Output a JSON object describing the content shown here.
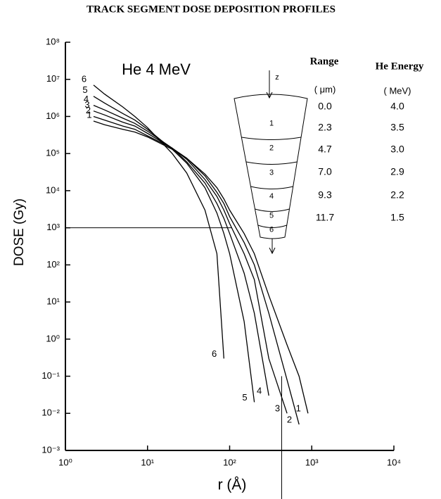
{
  "chart_data": {
    "type": "line",
    "title": "TRACK SEGMENT DOSE DEPOSITION PROFILES",
    "annotation": "He 4 MeV",
    "xlabel": "r (Å)",
    "ylabel": "DOSE (Gy)",
    "log_x": true,
    "log_y": true,
    "grid": false,
    "xlim": [
      1,
      10000
    ],
    "ylim": [
      0.001,
      100000000
    ],
    "xticks": [
      {
        "value": 1,
        "label": "10⁰"
      },
      {
        "value": 10,
        "label": "10¹"
      },
      {
        "value": 100,
        "label": "10²"
      },
      {
        "value": 1000,
        "label": "10³"
      },
      {
        "value": 10000,
        "label": "10⁴"
      }
    ],
    "yticks": [
      {
        "value": 0.001,
        "label": "10⁻³"
      },
      {
        "value": 0.01,
        "label": "10⁻²"
      },
      {
        "value": 0.1,
        "label": "10⁻¹"
      },
      {
        "value": 1,
        "label": "10⁰"
      },
      {
        "value": 10,
        "label": "10¹"
      },
      {
        "value": 100,
        "label": "10²"
      },
      {
        "value": 1000,
        "label": "10³"
      },
      {
        "value": 10000,
        "label": "10⁴"
      },
      {
        "value": 100000,
        "label": "10⁵"
      },
      {
        "value": 1000000,
        "label": "10⁶"
      },
      {
        "value": 10000000,
        "label": "10⁷"
      },
      {
        "value": 100000000,
        "label": "10⁸"
      }
    ],
    "x": [
      2.2,
      3,
      5,
      7,
      10,
      20,
      30,
      50,
      70,
      85,
      100,
      150,
      200,
      300,
      500,
      700,
      900
    ],
    "series": [
      {
        "name": "1",
        "color": "#000000",
        "values": [
          750000,
          600000,
          450000,
          380000,
          280000,
          130000,
          75000,
          28000,
          12000,
          6000,
          3000,
          700,
          200,
          15,
          0.7,
          0.1,
          0.01
        ]
      },
      {
        "name": "2",
        "color": "#000000",
        "values": [
          1000000,
          800000,
          550000,
          450000,
          300000,
          140000,
          75000,
          25000,
          9000,
          4500,
          2000,
          400,
          100,
          5,
          0.08,
          0.005,
          null
        ]
      },
      {
        "name": "3",
        "color": "#000000",
        "values": [
          1400000,
          1100000,
          700000,
          550000,
          350000,
          140000,
          70000,
          20000,
          7000,
          3000,
          1300,
          200,
          40,
          0.3,
          0.01,
          null,
          null
        ]
      },
      {
        "name": "4",
        "color": "#000000",
        "values": [
          2000000,
          1500000,
          900000,
          650000,
          400000,
          140000,
          60000,
          16000,
          4500,
          1800,
          700,
          60,
          5,
          0.03,
          null,
          null,
          null
        ]
      },
      {
        "name": "5",
        "color": "#000000",
        "values": [
          3500000,
          2300000,
          1200000,
          800000,
          450000,
          130000,
          55000,
          12000,
          2500,
          700,
          200,
          3,
          0.02,
          null,
          null,
          null,
          null
        ]
      },
      {
        "name": "6",
        "color": "#000000",
        "values": [
          7000000,
          4000000,
          1800000,
          1000000,
          500000,
          100000,
          30000,
          3000,
          200,
          0.3,
          null,
          null,
          null,
          null,
          null,
          null,
          null
        ]
      }
    ],
    "reference_lines": [
      {
        "axis": "y",
        "value": 1000,
        "to": 105
      },
      {
        "axis": "x",
        "value": 430,
        "from": 0.1
      }
    ],
    "inset": {
      "axis_label": "z",
      "segments": [
        "1",
        "2",
        "3",
        "4",
        "5",
        "6"
      ],
      "headers": [
        "Range",
        "He Energy"
      ],
      "units": [
        "( μm)",
        "( MeV)"
      ],
      "rows": [
        [
          "0.0",
          "4.0"
        ],
        [
          "2.3",
          "3.5"
        ],
        [
          "4.7",
          "3.0"
        ],
        [
          "7.0",
          "2.9"
        ],
        [
          "9.3",
          "2.2"
        ],
        [
          "11.7",
          "1.5"
        ]
      ]
    }
  }
}
